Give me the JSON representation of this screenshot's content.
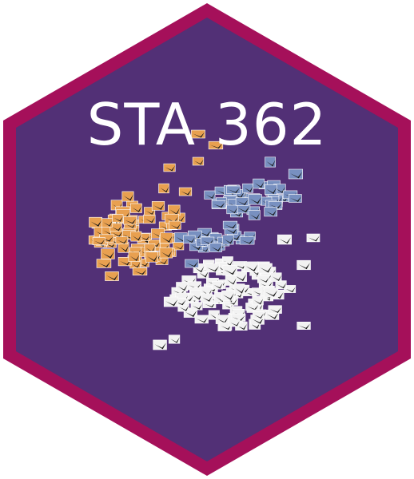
{
  "sticker": {
    "title": "STA 362",
    "colors": {
      "border": "#a5105a",
      "fill": "#523076",
      "text": "#ffffff"
    },
    "scatter_clusters": [
      {
        "name": "orange-birds",
        "tint": "#e8a050"
      },
      {
        "name": "blue-birds",
        "tint": "#7890c0"
      },
      {
        "name": "white-birds",
        "tint": "#f2f2f2"
      }
    ]
  }
}
